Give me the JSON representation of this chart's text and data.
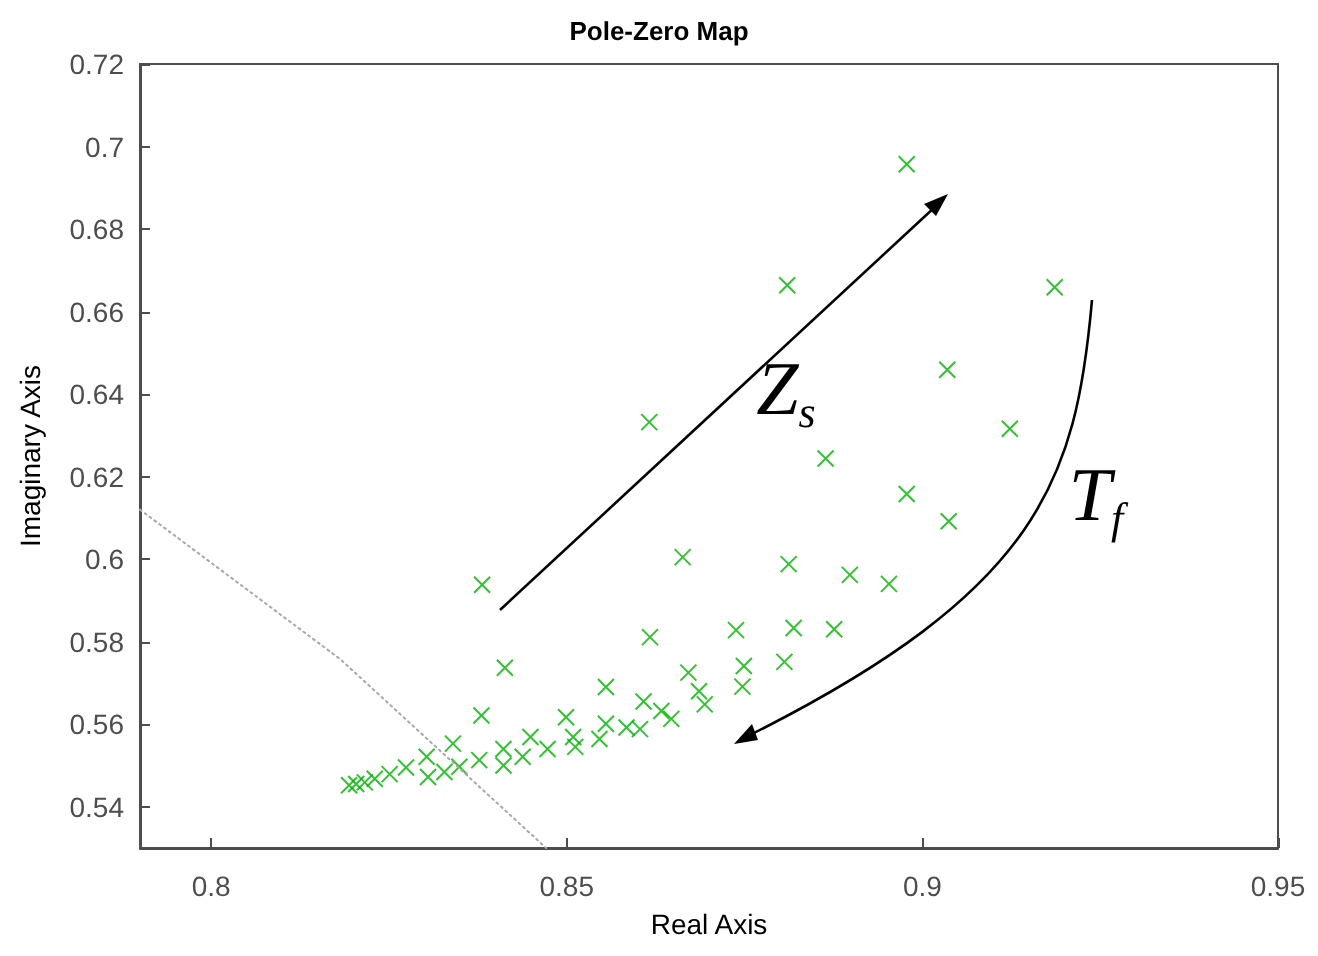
{
  "chart_data": {
    "type": "scatter",
    "title": "Pole-Zero Map",
    "xlabel": "Real Axis",
    "ylabel": "Imaginary Axis",
    "xlim": [
      0.79,
      0.95
    ],
    "xticks": [
      0.8,
      0.85,
      0.9,
      0.95
    ],
    "ylim": [
      0.53,
      0.72
    ],
    "yticks": [
      0.54,
      0.56,
      0.58,
      0.6,
      0.62,
      0.64,
      0.66,
      0.68,
      0.7,
      0.72
    ],
    "grid": false,
    "series": [
      {
        "marker": "cross",
        "color": "#00b000",
        "x": [
          0.8381,
          0.8413,
          0.838,
          0.8555,
          0.8499,
          0.8509,
          0.8512,
          0.8546,
          0.8555,
          0.8473,
          0.8449,
          0.8438,
          0.8411,
          0.8411,
          0.8377,
          0.834,
          0.8349,
          0.8328,
          0.8303,
          0.8305,
          0.8274,
          0.8251,
          0.823,
          0.8216,
          0.8204,
          0.8194,
          0.8978,
          0.881,
          0.9186,
          0.9035,
          0.9123,
          0.8616,
          0.8864,
          0.8978,
          0.9037,
          0.8663,
          0.8812,
          0.8898,
          0.8953,
          0.8617,
          0.8738,
          0.8819,
          0.8876,
          0.8749,
          0.8806,
          0.8671,
          0.8747,
          0.8686,
          0.8694,
          0.8608,
          0.8633,
          0.8647,
          0.8603,
          0.8584
        ],
        "values": [
          0.5938,
          0.5737,
          0.5621,
          0.569,
          0.5617,
          0.5569,
          0.5545,
          0.5564,
          0.5601,
          0.554,
          0.5569,
          0.5521,
          0.554,
          0.55,
          0.5513,
          0.5553,
          0.5497,
          0.5484,
          0.5521,
          0.5472,
          0.5495,
          0.5479,
          0.5468,
          0.5459,
          0.5455,
          0.5452,
          0.6957,
          0.6664,
          0.6659,
          0.6459,
          0.6316,
          0.6332,
          0.6244,
          0.6158,
          0.6092,
          0.6005,
          0.5988,
          0.5962,
          0.594,
          0.5811,
          0.5828,
          0.5833,
          0.583,
          0.5741,
          0.5751,
          0.5725,
          0.5691,
          0.568,
          0.5648,
          0.5655,
          0.5632,
          0.5613,
          0.5588,
          0.5592
        ]
      },
      {
        "type": "line",
        "marker": "none",
        "line_style": "dotted",
        "color": "#a8a8a8",
        "x": [
          0.79,
          0.8182,
          0.8471
        ],
        "values": [
          0.612,
          0.5757,
          0.53
        ]
      }
    ],
    "annotations": [
      "Z$_{s}$",
      "T$_{f}$"
    ]
  }
}
